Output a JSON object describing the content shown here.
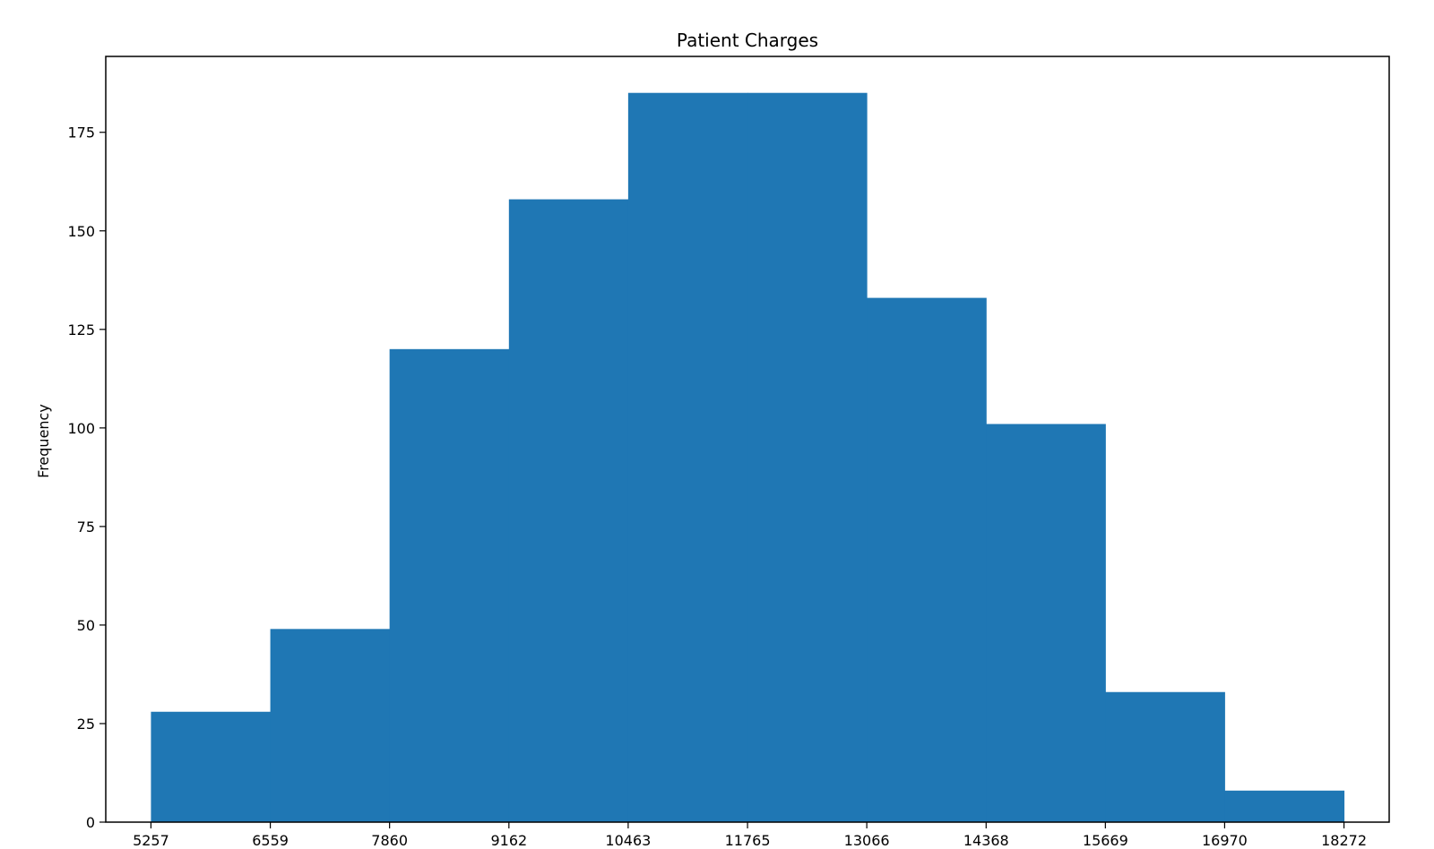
{
  "chart_data": {
    "type": "bar",
    "title": "Patient Charges",
    "xlabel": "",
    "ylabel": "Frequency",
    "bin_edges": [
      5257,
      6559,
      7860,
      9162,
      10463,
      11765,
      13066,
      14368,
      15669,
      16970,
      18272
    ],
    "x_tick_labels": [
      "5257",
      "6559",
      "7860",
      "9162",
      "10463",
      "11765",
      "13066",
      "14368",
      "15669",
      "16970",
      "18272"
    ],
    "values": [
      28,
      49,
      120,
      158,
      185,
      185,
      133,
      101,
      33,
      8
    ],
    "y_ticks": [
      0,
      25,
      50,
      75,
      100,
      125,
      150,
      175
    ],
    "y_tick_labels": [
      "0",
      "25",
      "50",
      "75",
      "100",
      "125",
      "150",
      "175"
    ],
    "xlim": [
      4764,
      18765
    ],
    "ylim": [
      0,
      194.25
    ],
    "grid": false,
    "bar_color": "#1f77b4"
  }
}
